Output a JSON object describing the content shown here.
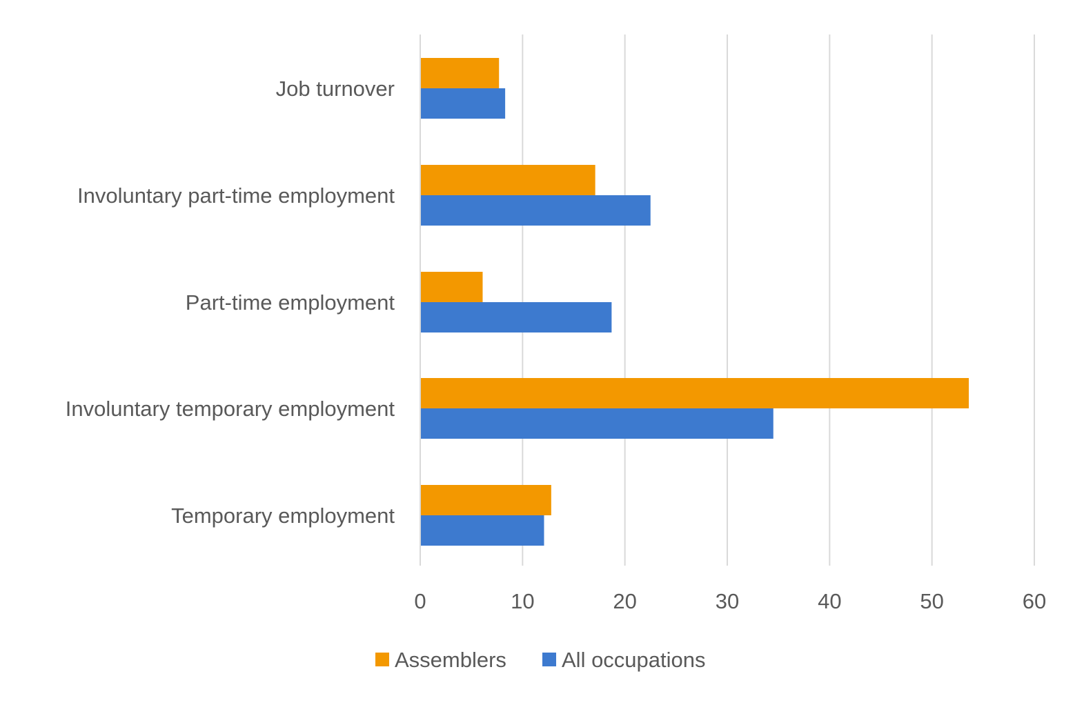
{
  "chart_data": {
    "type": "bar",
    "orientation": "horizontal",
    "categories": [
      "Job turnover",
      "Involuntary part-time employment",
      "Part-time employment",
      "Involuntary temporary employment",
      "Temporary employment"
    ],
    "series": [
      {
        "name": "Assemblers",
        "color": "#F39800",
        "values": [
          7.7,
          17.1,
          6.1,
          53.6,
          12.8
        ]
      },
      {
        "name": "All occupations",
        "color": "#3D7ACF",
        "values": [
          8.3,
          22.5,
          18.7,
          34.5,
          12.1
        ]
      }
    ],
    "xlim": [
      0,
      60
    ],
    "xticks": [
      "0",
      "10",
      "20",
      "30",
      "40",
      "50",
      "60"
    ],
    "title": "",
    "xlabel": "",
    "ylabel": "",
    "grid": "vertical",
    "legend_position": "bottom"
  }
}
